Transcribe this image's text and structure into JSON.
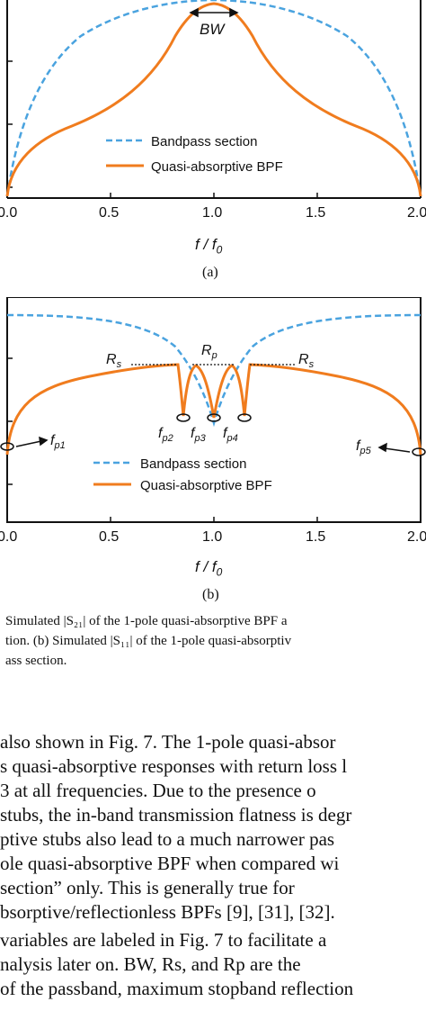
{
  "figure_a": {
    "annotation_bw": "BW",
    "legend": [
      "Bandpass section",
      "Quasi-absorptive BPF"
    ],
    "x_ticks": [
      "0.0",
      "0.5",
      "1.0",
      "1.5",
      "2.0"
    ],
    "xlabel": "f / f",
    "xlabel_sub": "0",
    "sublabel": "(a)",
    "colors": {
      "bandpass": "#4aa3df",
      "quasi": "#f07c1e"
    }
  },
  "figure_b": {
    "annotations": {
      "rs_left": "R",
      "rs_left_sub": "s",
      "rp": "R",
      "rp_sub": "p",
      "rs_right": "R",
      "rs_right_sub": "s",
      "fp1": "f",
      "fp1_sub": "p1",
      "fp2": "f",
      "fp2_sub": "p2",
      "fp3": "f",
      "fp3_sub": "p3",
      "fp4": "f",
      "fp4_sub": "p4",
      "fp5": "f",
      "fp5_sub": "p5"
    },
    "legend": [
      "Bandpass section",
      "Quasi-absorptive BPF"
    ],
    "x_ticks": [
      "0.0",
      "0.5",
      "1.0",
      "1.5",
      "2.0"
    ],
    "xlabel": "f / f",
    "xlabel_sub": "0",
    "sublabel": "(b)"
  },
  "caption": [
    "Simulated |S₂₁| of the 1-pole quasi-absorptive BPF a",
    "tion. (b) Simulated |S₁₁| of the 1-pole quasi-absorptiv",
    "ass section."
  ],
  "paragraph": [
    "also shown in Fig. 7. The 1-pole quasi-absor",
    "s quasi-absorptive responses with return loss l",
    "3 at all frequencies. Due to the presence o",
    "stubs, the in-band transmission flatness is degr",
    "ptive stubs also lead to a much narrower pas",
    "ole quasi-absorptive BPF when compared wi",
    "section” only. This is generally true for",
    "bsorptive/reflectionless BPFs [9], [31], [32].",
    "variables are labeled in Fig. 7 to facilitate a",
    "nalysis later on. BW, Rs, and Rp are the",
    "of the passband, maximum stopband reflection"
  ]
}
